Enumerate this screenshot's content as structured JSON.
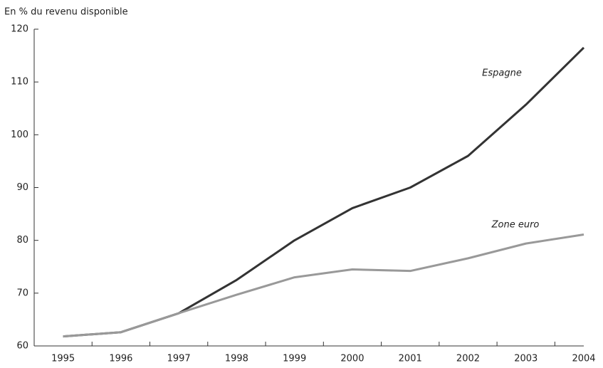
{
  "chart_data": {
    "type": "line",
    "y_label": "En % du revenu disponible",
    "categories": [
      "1995",
      "1996",
      "1997",
      "1998",
      "1999",
      "2000",
      "2001",
      "2002",
      "2003",
      "2004"
    ],
    "series": [
      {
        "name": "Espagne",
        "color": "#333333",
        "values": [
          61.8,
          62.6,
          66.2,
          72.5,
          80,
          86.1,
          90,
          96,
          105.7,
          116.5
        ]
      },
      {
        "name": "Zone euro",
        "color": "#999999",
        "values": [
          61.8,
          62.6,
          66.2,
          69.7,
          73,
          74.5,
          74.2,
          76.6,
          79.4,
          81.1
        ]
      }
    ],
    "ylim": [
      60,
      120
    ],
    "yticks": [
      60,
      70,
      80,
      90,
      100,
      110,
      120
    ],
    "grid": false
  }
}
